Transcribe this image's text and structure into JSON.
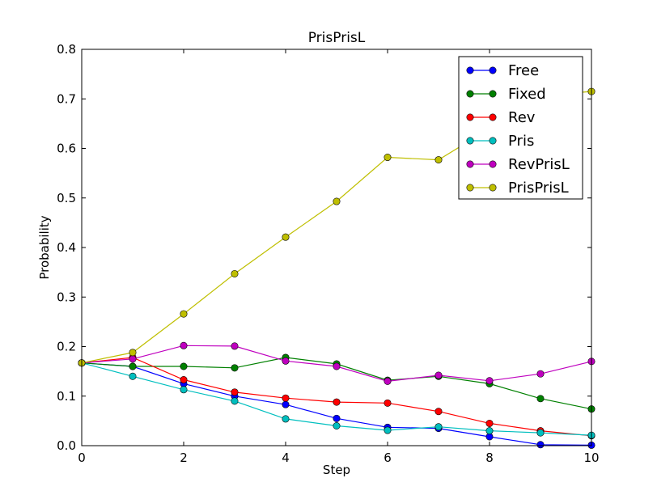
{
  "chart_data": {
    "type": "line",
    "title": "PrisPrisL",
    "xlabel": "Step",
    "ylabel": "Probability",
    "xlim": [
      0,
      10
    ],
    "ylim": [
      0,
      0.8
    ],
    "x_ticks": [
      0,
      2,
      4,
      6,
      8,
      10
    ],
    "y_ticks": [
      0.0,
      0.1,
      0.2,
      0.3,
      0.4,
      0.5,
      0.6,
      0.7,
      0.8
    ],
    "x_tick_labels": [
      "0",
      "2",
      "4",
      "6",
      "8",
      "10"
    ],
    "y_tick_labels": [
      "0.0",
      "0.1",
      "0.2",
      "0.3",
      "0.4",
      "0.5",
      "0.6",
      "0.7",
      "0.8"
    ],
    "grid": false,
    "legend_position": "top-right",
    "x": [
      0,
      1,
      2,
      3,
      4,
      5,
      6,
      7,
      8,
      9,
      10
    ],
    "series": [
      {
        "name": "Free",
        "color": "#0000ff",
        "values": [
          0.167,
          0.16,
          0.125,
          0.1,
          0.083,
          0.055,
          0.037,
          0.035,
          0.018,
          0.002,
          0.001
        ]
      },
      {
        "name": "Fixed",
        "color": "#008000",
        "values": [
          0.167,
          0.16,
          0.16,
          0.157,
          0.178,
          0.165,
          0.132,
          0.14,
          0.125,
          0.095,
          0.074
        ]
      },
      {
        "name": "Rev",
        "color": "#ff0000",
        "values": [
          0.167,
          0.178,
          0.133,
          0.108,
          0.096,
          0.088,
          0.086,
          0.069,
          0.045,
          0.03,
          0.02
        ]
      },
      {
        "name": "Pris",
        "color": "#00bfbf",
        "values": [
          0.167,
          0.14,
          0.113,
          0.09,
          0.054,
          0.04,
          0.031,
          0.038,
          0.03,
          0.026,
          0.021
        ]
      },
      {
        "name": "RevPrisL",
        "color": "#bf00bf",
        "values": [
          0.167,
          0.175,
          0.202,
          0.201,
          0.171,
          0.16,
          0.13,
          0.142,
          0.131,
          0.145,
          0.17
        ]
      },
      {
        "name": "PrisPrisL",
        "color": "#bfbf00",
        "values": [
          0.167,
          0.188,
          0.266,
          0.347,
          0.421,
          0.493,
          0.582,
          0.577,
          0.64,
          0.707,
          0.715
        ]
      }
    ]
  }
}
